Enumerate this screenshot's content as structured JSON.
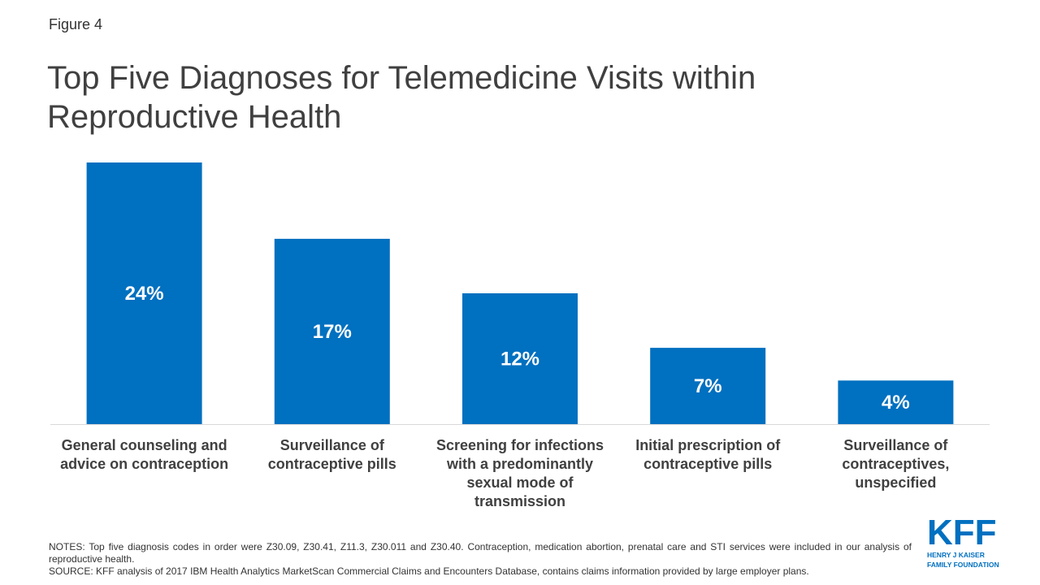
{
  "figure_label": "Figure 4",
  "colors": {
    "bar": "#0070c0",
    "bar_label": "#ffffff",
    "axis": "#d9d9d9",
    "logo": "#0070c0"
  },
  "chart_data": {
    "type": "bar",
    "title": "Top Five Diagnoses for Telemedicine Visits within Reproductive Health",
    "categories": [
      "General counseling and advice on contraception",
      "Surveillance of contraceptive pills",
      "Screening for infections with a predominantly sexual mode of transmission",
      "Initial prescription of contraceptive pills",
      "Surveillance of contraceptives, unspecified"
    ],
    "values": [
      24,
      17,
      12,
      7,
      4
    ],
    "data_labels": [
      "24%",
      "17%",
      "12%",
      "7%",
      "4%"
    ],
    "xlabel": "",
    "ylabel": "",
    "ylim": [
      0,
      24
    ],
    "grid": false,
    "legend": "none"
  },
  "notes": {
    "notes_text": "NOTES: Top five diagnosis codes in order were Z30.09, Z30.41, Z11.3, Z30.011 and Z30.40. Contraception, medication abortion, prenatal care and STI services were included in our analysis of reproductive health.",
    "source_text": "SOURCE: KFF analysis of 2017 IBM Health Analytics MarketScan Commercial Claims and Encounters Database, contains claims information provided by large employer plans."
  },
  "logo": {
    "mark": "KFF",
    "line1": "HENRY J KAISER",
    "line2": "FAMILY FOUNDATION"
  }
}
